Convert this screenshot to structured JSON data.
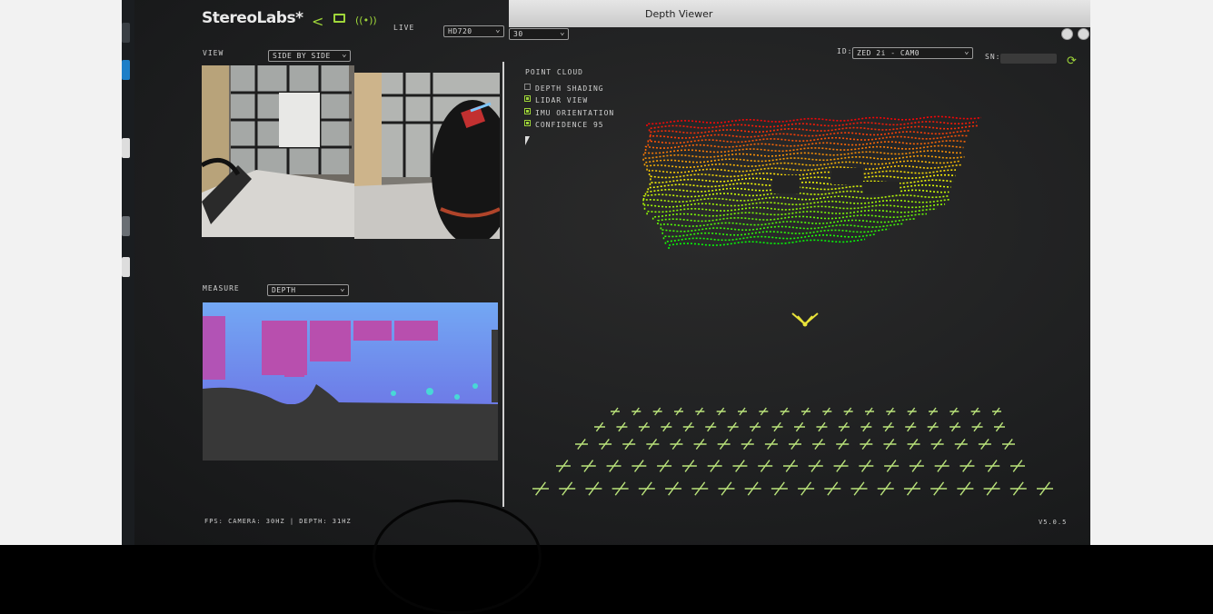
{
  "window": {
    "title": "Depth Viewer"
  },
  "toolbar": {
    "brand": "StereoLabs*",
    "live_label": "LIVE",
    "resolution": "HD720",
    "fps": "30"
  },
  "camera": {
    "id_label": "ID:",
    "id_value": "ZED 2i - CAM0",
    "sn_label": "SN:"
  },
  "view": {
    "label": "VIEW",
    "mode": "SIDE BY SIDE"
  },
  "measure": {
    "label": "MEASURE",
    "mode": "DEPTH"
  },
  "point_cloud": {
    "title": "POINT CLOUD",
    "options": [
      {
        "label": "DEPTH SHADING",
        "checked": false
      },
      {
        "label": "LIDAR VIEW",
        "checked": true
      },
      {
        "label": "IMU ORIENTATION",
        "checked": true
      },
      {
        "label": "CONFIDENCE 95",
        "checked": true
      }
    ]
  },
  "status": {
    "fps_text": "FPS: CAMERA: 30HZ | DEPTH: 31HZ",
    "version": "V5.0.5"
  },
  "colors": {
    "accent": "#9fd63a",
    "depth_purple": "#b84fae",
    "depth_blue": "#6b8ff0"
  },
  "icons": [
    "share-icon",
    "folder-icon",
    "live-signal-icon",
    "sync-icon"
  ]
}
